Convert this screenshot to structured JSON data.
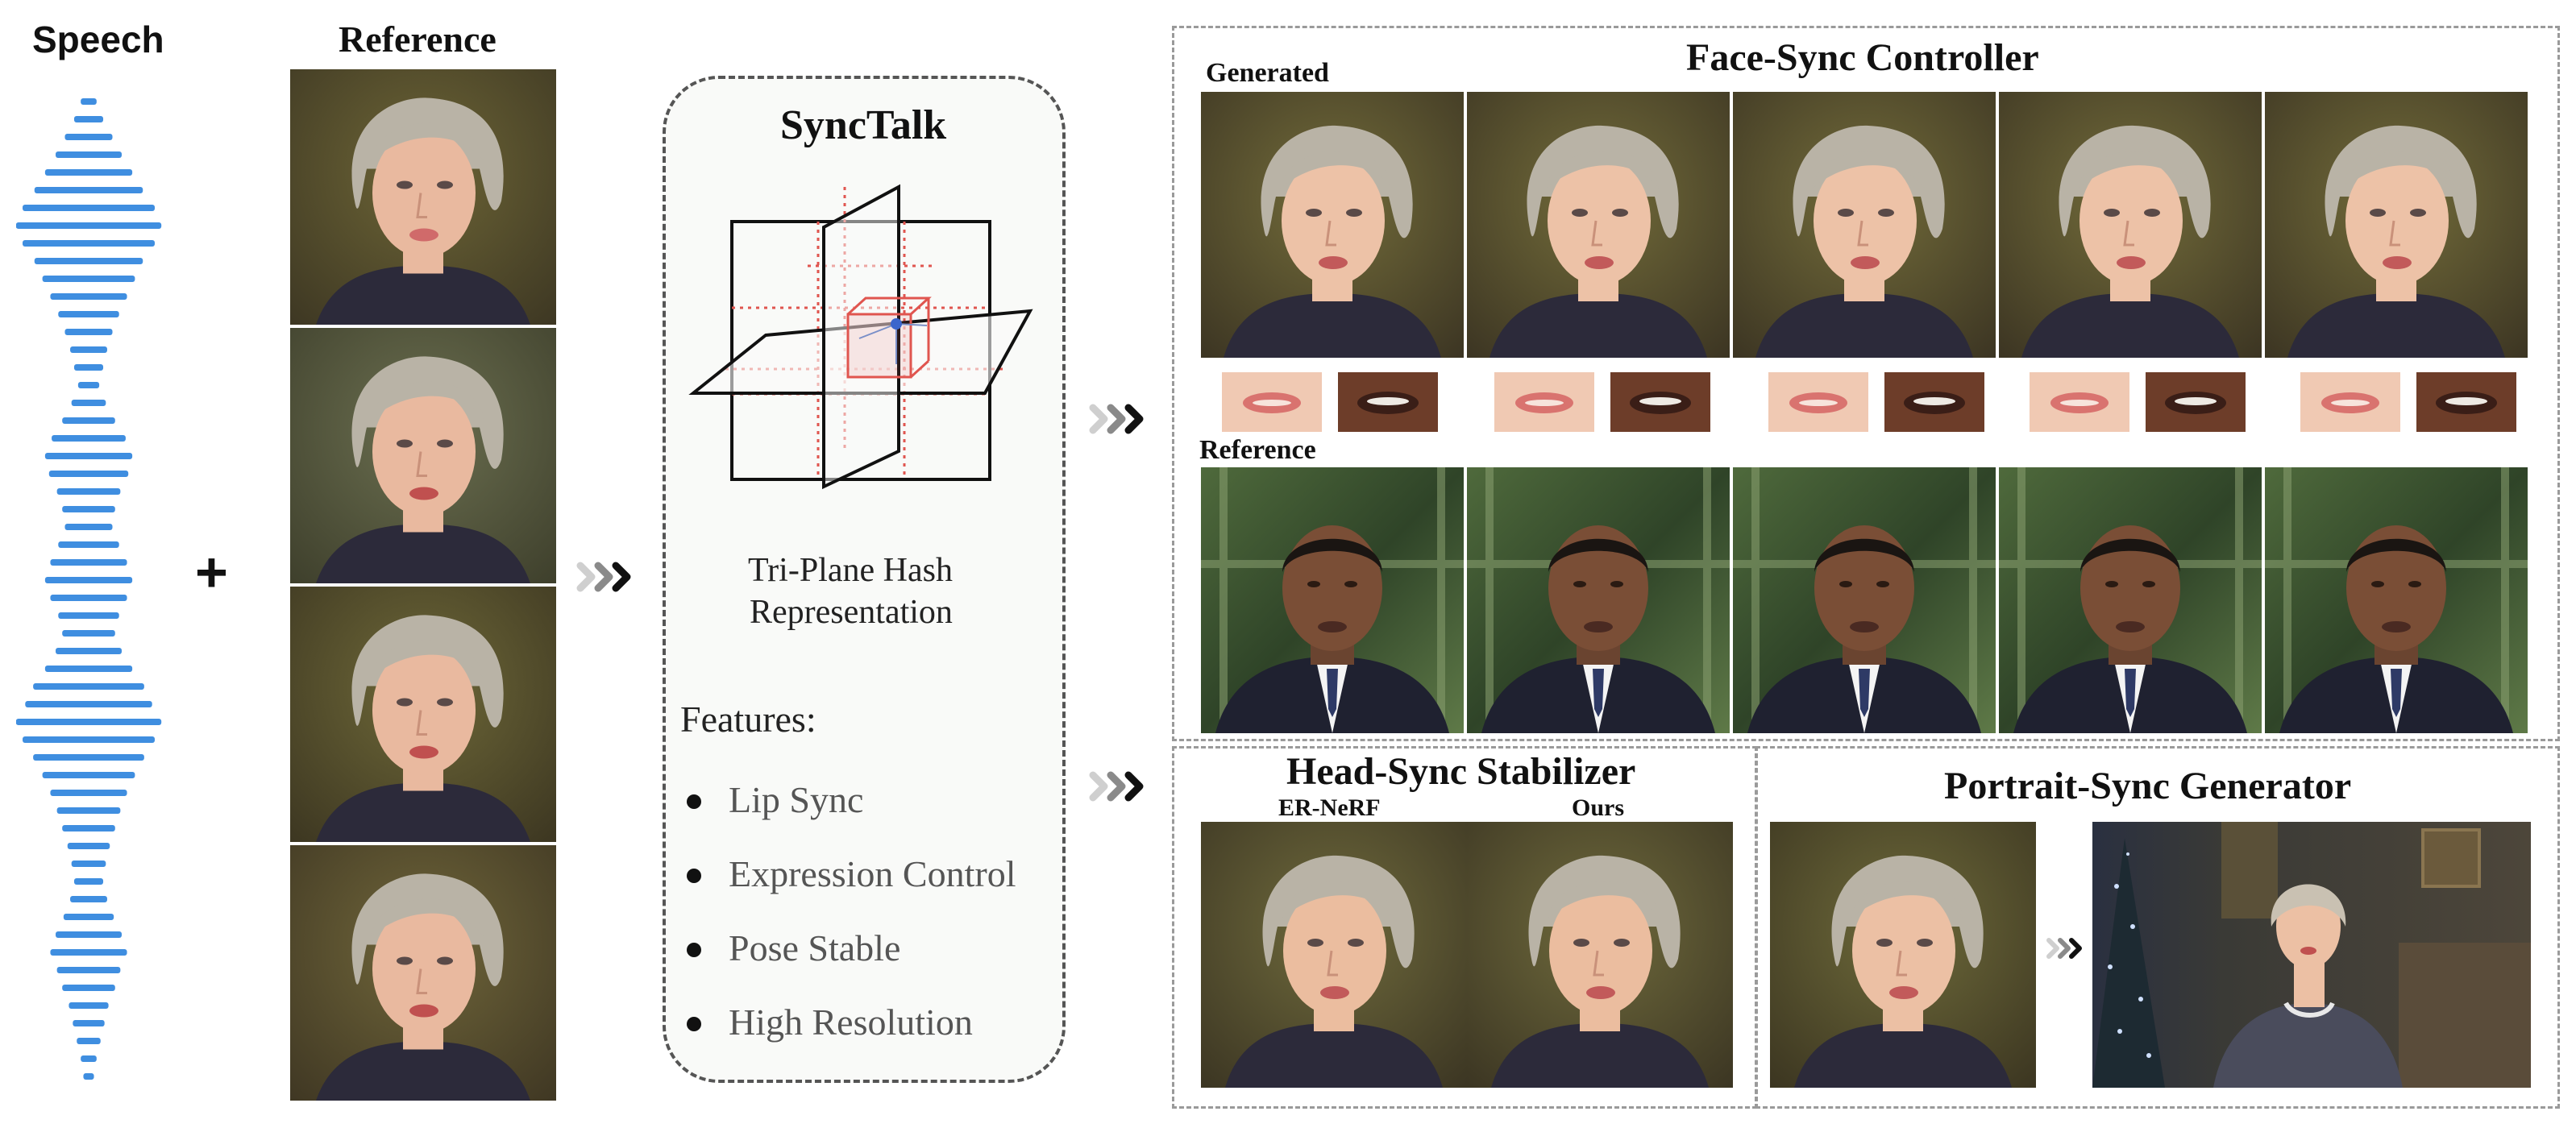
{
  "speech": {
    "label": "Speech"
  },
  "plus_symbol": "+",
  "reference": {
    "label": "Reference"
  },
  "synctalk": {
    "title": "SyncTalk",
    "triplane_caption_line1": "Tri-Plane Hash",
    "triplane_caption_line2": "Representation",
    "features_heading": "Features:",
    "features": [
      "Lip Sync",
      "Expression Control",
      "Pose Stable",
      "High Resolution"
    ]
  },
  "face_sync": {
    "title": "Face-Sync Controller",
    "generated_label": "Generated",
    "reference_label": "Reference"
  },
  "head_sync": {
    "title": "Head-Sync Stabilizer",
    "left_label": "ER-NeRF",
    "right_label": "Ours"
  },
  "portrait_sync": {
    "title": "Portrait-Sync Generator"
  },
  "colors": {
    "waveform": "#3f8ee0",
    "grid_red": "#e0554f",
    "dashed_border": "#9a9a9a",
    "panel_bg": "#f9faf8"
  }
}
